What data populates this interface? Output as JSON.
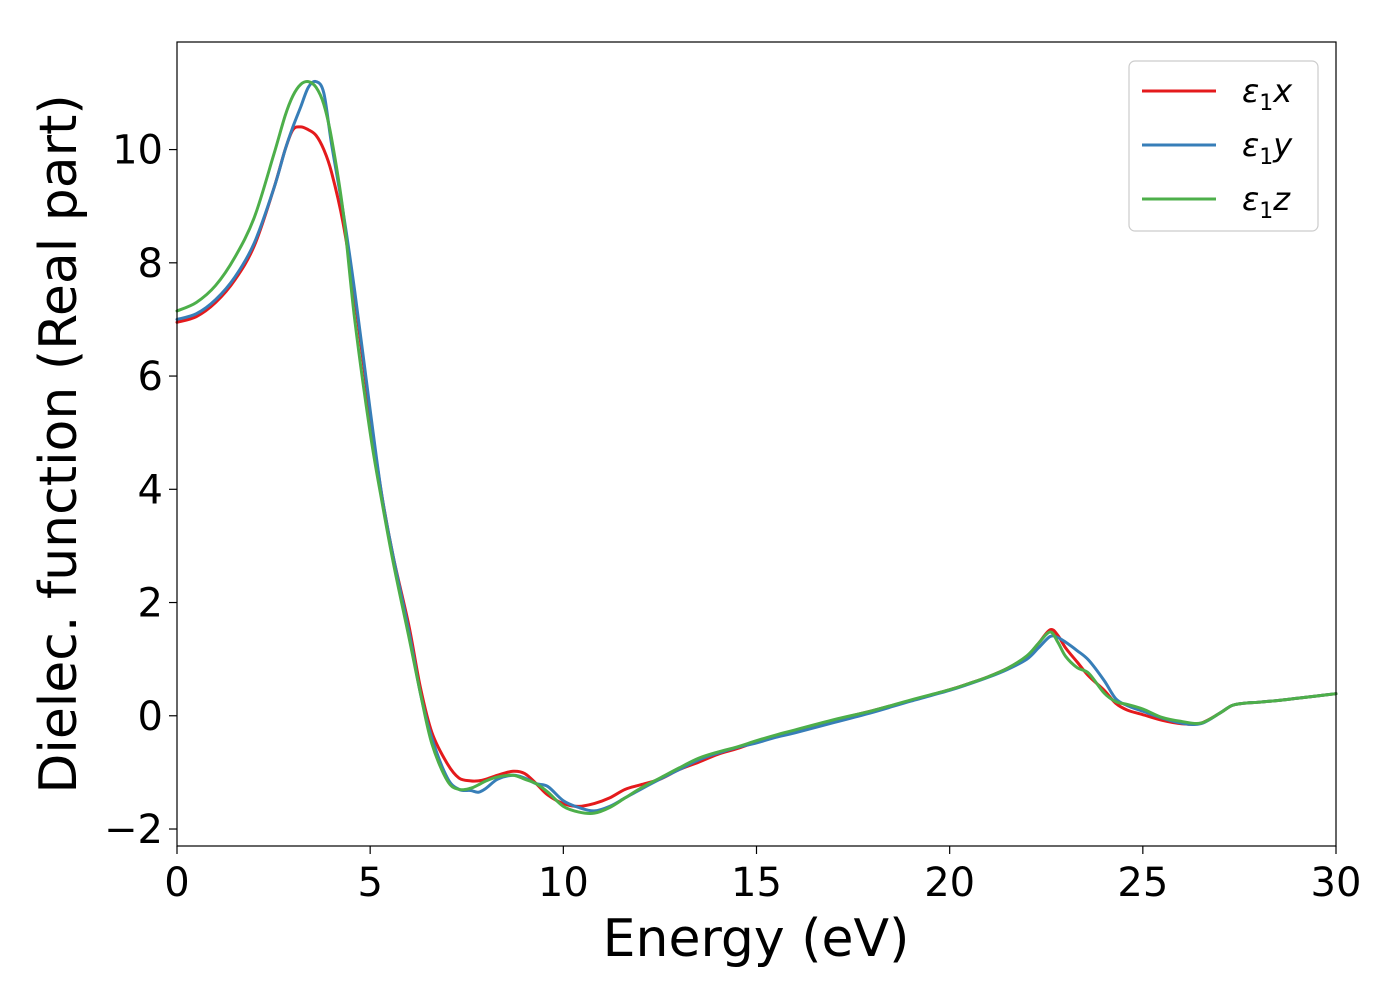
{
  "chart_data": {
    "type": "line",
    "title": "",
    "xlabel": "Energy (eV)",
    "ylabel": "Dielec. function (Real part)",
    "xlim": [
      0,
      30
    ],
    "ylim": [
      -2.3,
      11.9
    ],
    "xticks": [
      0,
      5,
      10,
      15,
      20,
      25,
      30
    ],
    "xtick_labels": [
      "0",
      "5",
      "10",
      "15",
      "20",
      "25",
      "30"
    ],
    "yticks": [
      -2,
      0,
      2,
      4,
      6,
      8,
      10
    ],
    "ytick_labels": [
      "−2",
      "0",
      "2",
      "4",
      "6",
      "8",
      "10"
    ],
    "grid": false,
    "legend_position": "top-right",
    "series": [
      {
        "name_main": "ε",
        "name_sub": "1",
        "name_suffix": "x",
        "color": "#e41a1c",
        "x": [
          0,
          0.5,
          1,
          1.5,
          2,
          2.5,
          2.8,
          3.0,
          3.2,
          3.4,
          3.6,
          3.8,
          4.0,
          4.3,
          4.6,
          5.0,
          5.3,
          5.6,
          6.0,
          6.3,
          6.6,
          7.0,
          7.3,
          7.6,
          7.8,
          8.0,
          8.3,
          8.7,
          9.0,
          9.3,
          9.6,
          10.0,
          10.4,
          10.8,
          11.2,
          11.6,
          12.0,
          12.5,
          13.0,
          13.5,
          14.0,
          14.5,
          15.0,
          15.5,
          16.0,
          17.0,
          18.0,
          19.0,
          20.0,
          20.5,
          21.0,
          21.5,
          22.0,
          22.3,
          22.6,
          22.8,
          23.0,
          23.3,
          23.6,
          24.0,
          24.3,
          24.6,
          25.0,
          25.5,
          26.0,
          26.5,
          27.0,
          27.3,
          27.6,
          28.0,
          28.5,
          29.0,
          29.5,
          30.0
        ],
        "y": [
          6.95,
          7.05,
          7.3,
          7.7,
          8.3,
          9.3,
          10.0,
          10.35,
          10.4,
          10.35,
          10.25,
          10.0,
          9.6,
          8.7,
          7.4,
          5.3,
          3.9,
          2.8,
          1.6,
          0.5,
          -0.3,
          -0.85,
          -1.1,
          -1.15,
          -1.15,
          -1.12,
          -1.05,
          -0.98,
          -1.02,
          -1.2,
          -1.4,
          -1.55,
          -1.6,
          -1.55,
          -1.45,
          -1.3,
          -1.22,
          -1.12,
          -0.95,
          -0.82,
          -0.68,
          -0.58,
          -0.46,
          -0.35,
          -0.26,
          -0.08,
          0.09,
          0.27,
          0.46,
          0.57,
          0.69,
          0.84,
          1.05,
          1.28,
          1.52,
          1.42,
          1.2,
          0.95,
          0.7,
          0.45,
          0.22,
          0.1,
          0.02,
          -0.08,
          -0.14,
          -0.13,
          0.05,
          0.18,
          0.22,
          0.24,
          0.27,
          0.31,
          0.35,
          0.39
        ]
      },
      {
        "name_main": "ε",
        "name_sub": "1",
        "name_suffix": "y",
        "color": "#377eb8",
        "x": [
          0,
          0.5,
          1,
          1.5,
          2,
          2.5,
          2.8,
          3.0,
          3.2,
          3.4,
          3.6,
          3.8,
          4.0,
          4.3,
          4.6,
          5.0,
          5.3,
          5.6,
          6.0,
          6.3,
          6.6,
          7.0,
          7.3,
          7.6,
          7.8,
          8.0,
          8.3,
          8.7,
          9.0,
          9.3,
          9.6,
          10.0,
          10.4,
          10.8,
          11.2,
          11.6,
          12.0,
          12.5,
          13.0,
          13.5,
          14.0,
          14.5,
          15.0,
          15.5,
          16.0,
          17.0,
          18.0,
          19.0,
          20.0,
          20.5,
          21.0,
          21.5,
          22.0,
          22.3,
          22.6,
          22.8,
          23.0,
          23.3,
          23.6,
          24.0,
          24.3,
          24.6,
          25.0,
          25.5,
          26.0,
          26.5,
          27.0,
          27.3,
          27.6,
          28.0,
          28.5,
          29.0,
          29.5,
          30.0
        ],
        "y": [
          7.0,
          7.1,
          7.35,
          7.75,
          8.35,
          9.3,
          10.0,
          10.4,
          10.75,
          11.1,
          11.2,
          11.0,
          10.1,
          8.9,
          7.5,
          5.4,
          3.9,
          2.8,
          1.5,
          0.4,
          -0.4,
          -1.1,
          -1.3,
          -1.32,
          -1.35,
          -1.28,
          -1.12,
          -1.05,
          -1.1,
          -1.2,
          -1.25,
          -1.5,
          -1.62,
          -1.68,
          -1.6,
          -1.45,
          -1.3,
          -1.12,
          -0.95,
          -0.78,
          -0.66,
          -0.56,
          -0.48,
          -0.38,
          -0.3,
          -0.12,
          0.06,
          0.26,
          0.45,
          0.56,
          0.68,
          0.82,
          1.0,
          1.2,
          1.4,
          1.38,
          1.3,
          1.15,
          0.98,
          0.62,
          0.3,
          0.18,
          0.08,
          -0.04,
          -0.13,
          -0.14,
          0.05,
          0.18,
          0.22,
          0.24,
          0.27,
          0.31,
          0.35,
          0.39
        ]
      },
      {
        "name_main": "ε",
        "name_sub": "1",
        "name_suffix": "z",
        "color": "#4daf4a",
        "x": [
          0,
          0.5,
          1,
          1.5,
          2,
          2.5,
          2.8,
          3.0,
          3.2,
          3.4,
          3.6,
          3.8,
          4.0,
          4.3,
          4.6,
          5.0,
          5.3,
          5.6,
          6.0,
          6.3,
          6.6,
          7.0,
          7.3,
          7.6,
          7.8,
          8.0,
          8.3,
          8.7,
          9.0,
          9.3,
          9.6,
          10.0,
          10.4,
          10.8,
          11.2,
          11.6,
          12.0,
          12.5,
          13.0,
          13.5,
          14.0,
          14.5,
          15.0,
          15.5,
          16.0,
          17.0,
          18.0,
          19.0,
          20.0,
          20.5,
          21.0,
          21.5,
          22.0,
          22.3,
          22.6,
          22.8,
          23.0,
          23.3,
          23.6,
          24.0,
          24.3,
          24.6,
          25.0,
          25.5,
          26.0,
          26.5,
          27.0,
          27.3,
          27.6,
          28.0,
          28.5,
          29.0,
          29.5,
          30.0
        ],
        "y": [
          7.15,
          7.3,
          7.6,
          8.1,
          8.8,
          9.9,
          10.6,
          10.95,
          11.15,
          11.2,
          11.1,
          10.8,
          10.2,
          8.9,
          7.0,
          5.0,
          3.8,
          2.7,
          1.4,
          0.4,
          -0.5,
          -1.15,
          -1.3,
          -1.28,
          -1.22,
          -1.15,
          -1.08,
          -1.05,
          -1.12,
          -1.2,
          -1.35,
          -1.6,
          -1.7,
          -1.72,
          -1.62,
          -1.45,
          -1.28,
          -1.1,
          -0.92,
          -0.75,
          -0.64,
          -0.55,
          -0.44,
          -0.34,
          -0.25,
          -0.07,
          0.09,
          0.28,
          0.46,
          0.57,
          0.69,
          0.84,
          1.06,
          1.28,
          1.48,
          1.3,
          1.05,
          0.85,
          0.75,
          0.4,
          0.25,
          0.2,
          0.12,
          -0.03,
          -0.1,
          -0.13,
          0.05,
          0.18,
          0.22,
          0.24,
          0.27,
          0.31,
          0.35,
          0.39
        ]
      }
    ]
  }
}
